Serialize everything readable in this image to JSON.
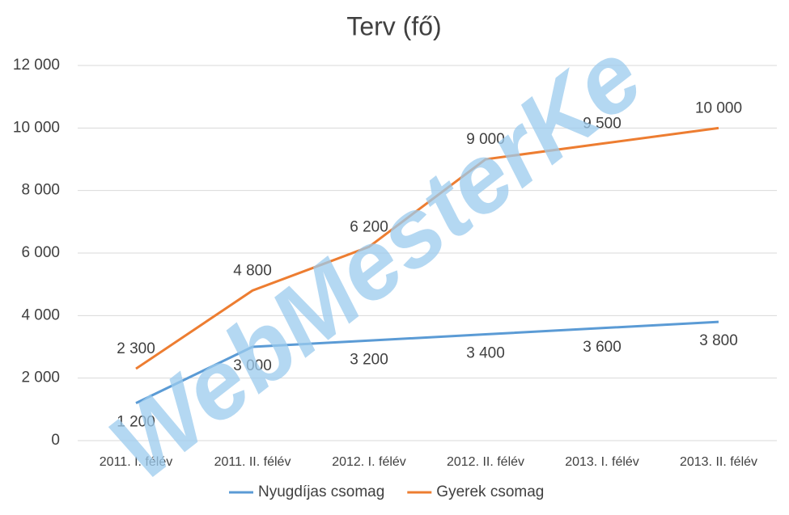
{
  "chart_data": {
    "type": "line",
    "title": "Terv (fő)",
    "watermark": "WebMesterKe",
    "categories": [
      "2011. I. félév",
      "2011. II. félév",
      "2012. I. félév",
      "2012. II. félév",
      "2013. I. félév",
      "2013. II. félév"
    ],
    "series": [
      {
        "name": "Nyugdíjas csomag",
        "color": "#5b9bd5",
        "values": [
          1200,
          3000,
          3200,
          3400,
          3600,
          3800
        ],
        "value_labels": [
          "1 200",
          "3 000",
          "3 200",
          "3 400",
          "3 600",
          "3 800"
        ]
      },
      {
        "name": "Gyerek csomag",
        "color": "#ed7d31",
        "values": [
          2300,
          4800,
          6200,
          9000,
          9500,
          10000
        ],
        "value_labels": [
          "2 300",
          "4 800",
          "6 200",
          "9 000",
          "9 500",
          "10 000"
        ]
      }
    ],
    "ylim": [
      0,
      12000
    ],
    "yticks": [
      0,
      {
        "value": 2000,
        "label": "2 000"
      },
      {
        "value": 4000,
        "label": "4 000"
      },
      {
        "value": 6000,
        "label": "6 000"
      },
      {
        "value": 8000,
        "label": "8 000"
      },
      {
        "value": 10000,
        "label": "10 000"
      },
      {
        "value": 12000,
        "label": "12 000"
      }
    ],
    "grid": true,
    "legend": "bottom"
  }
}
